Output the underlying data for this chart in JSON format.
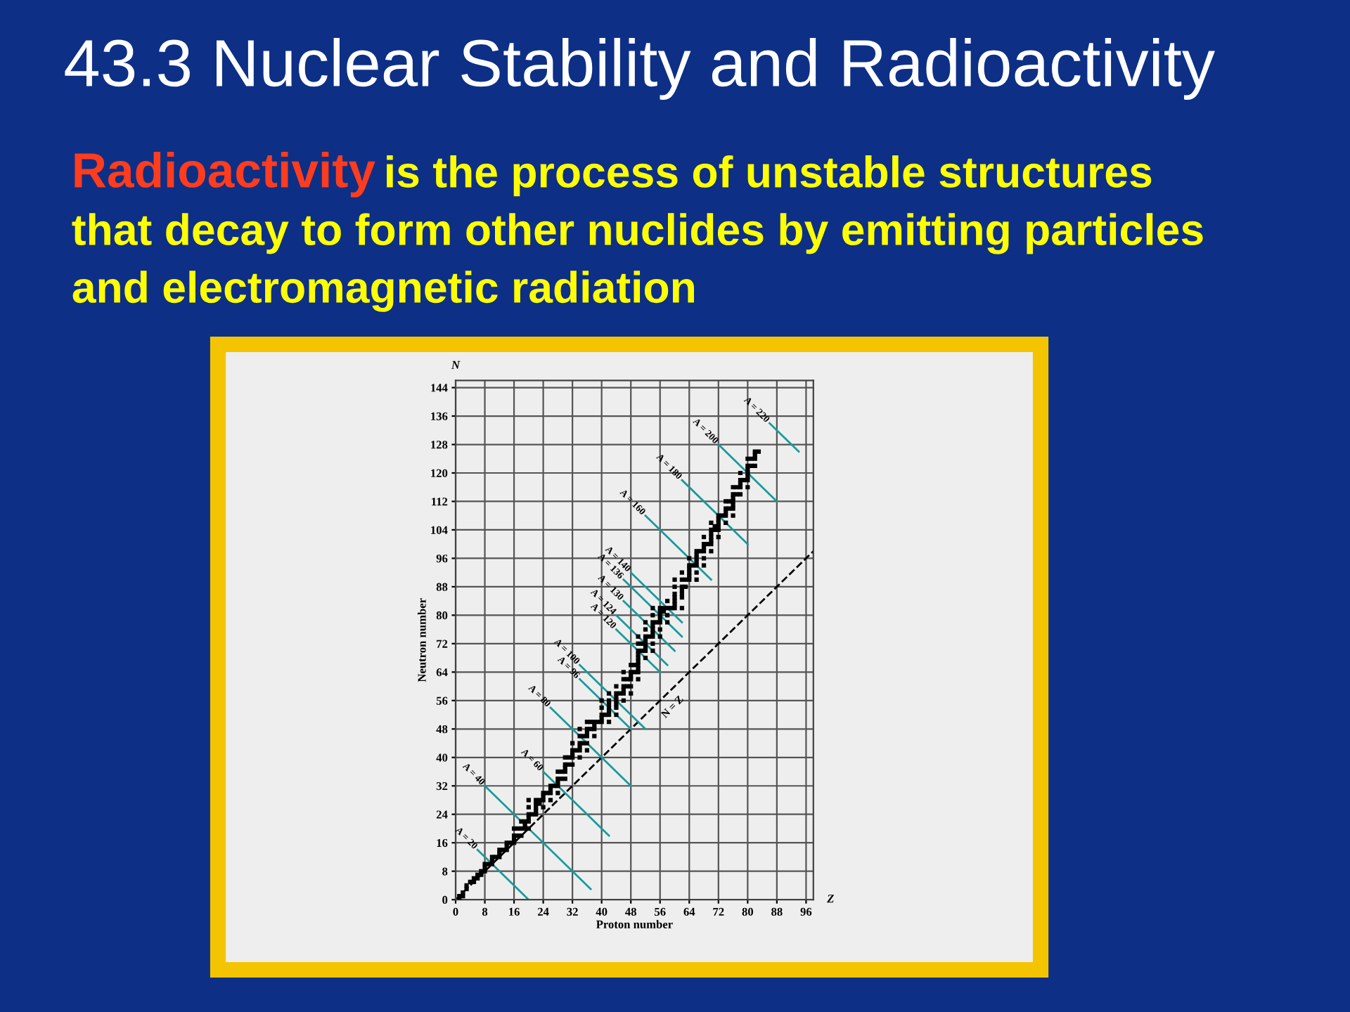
{
  "chart_data": {
    "type": "scatter",
    "title": "43.3 Nuclear Stability and Radioactivity",
    "subtitle": "Radioactivity is the process of unstable structures that decay to form other nuclides by emitting particles and electromagnetic radiation",
    "xlabel": "Proton number",
    "ylabel": "Neutron number",
    "annotations": [
      "N",
      "Z"
    ],
    "xlim": [
      0,
      98
    ],
    "ylim": [
      0,
      146
    ],
    "xticks": [
      0,
      8,
      16,
      24,
      32,
      40,
      48,
      56,
      64,
      72,
      80,
      88,
      96
    ],
    "yticks": [
      0,
      8,
      16,
      24,
      32,
      40,
      48,
      56,
      64,
      72,
      80,
      88,
      96,
      104,
      112,
      120,
      128,
      136,
      144
    ],
    "grid": true,
    "legend": false,
    "series": [
      {
        "marker": "square",
        "color": "#000000",
        "x": [
          1,
          1,
          2,
          2,
          3,
          3,
          4,
          5,
          5,
          6,
          6,
          7,
          7,
          8,
          8,
          8,
          9,
          10,
          10,
          10,
          11,
          12,
          12,
          12,
          13,
          14,
          14,
          14,
          15,
          16,
          16,
          16,
          16,
          17,
          17,
          18,
          18,
          18,
          19,
          19,
          19,
          20,
          20,
          20,
          20,
          20,
          20,
          21,
          22,
          22,
          22,
          22,
          22,
          23,
          23,
          24,
          24,
          24,
          24,
          25,
          26,
          26,
          26,
          26,
          27,
          28,
          28,
          28,
          28,
          28,
          29,
          29,
          30,
          30,
          30,
          30,
          30,
          31,
          31,
          32,
          32,
          32,
          32,
          32,
          33,
          34,
          34,
          34,
          34,
          34,
          34,
          35,
          35,
          36,
          36,
          36,
          36,
          36,
          36,
          37,
          37,
          38,
          38,
          38,
          38,
          39,
          40,
          40,
          40,
          40,
          40,
          41,
          42,
          42,
          42,
          42,
          42,
          42,
          42,
          44,
          44,
          44,
          44,
          44,
          44,
          44,
          45,
          46,
          46,
          46,
          46,
          46,
          46,
          47,
          47,
          48,
          48,
          48,
          48,
          48,
          48,
          49,
          49,
          50,
          50,
          50,
          50,
          50,
          50,
          50,
          50,
          50,
          50,
          51,
          51,
          52,
          52,
          52,
          52,
          52,
          52,
          52,
          52,
          53,
          54,
          54,
          54,
          54,
          54,
          54,
          54,
          54,
          54,
          55,
          56,
          56,
          56,
          56,
          56,
          56,
          56,
          57,
          57,
          58,
          58,
          58,
          58,
          59,
          60,
          60,
          60,
          60,
          60,
          60,
          60,
          62,
          62,
          62,
          62,
          62,
          62,
          62,
          63,
          63,
          64,
          64,
          64,
          64,
          64,
          64,
          65,
          66,
          66,
          66,
          66,
          66,
          66,
          66,
          67,
          68,
          68,
          68,
          68,
          68,
          68,
          69,
          70,
          70,
          70,
          70,
          70,
          70,
          70,
          71,
          71,
          72,
          72,
          72,
          72,
          72,
          72,
          73,
          74,
          74,
          74,
          74,
          74,
          75,
          75,
          76,
          76,
          76,
          76,
          76,
          76,
          76,
          77,
          77,
          78,
          78,
          78,
          78,
          78,
          79,
          80,
          80,
          80,
          80,
          80,
          80,
          80,
          81,
          81,
          82,
          82,
          82,
          82,
          83
        ],
        "values": [
          0,
          1,
          1,
          2,
          3,
          4,
          5,
          5,
          6,
          6,
          7,
          7,
          8,
          8,
          9,
          10,
          10,
          10,
          11,
          12,
          12,
          12,
          13,
          14,
          14,
          14,
          15,
          16,
          16,
          16,
          17,
          18,
          20,
          18,
          20,
          18,
          20,
          22,
          20,
          21,
          22,
          20,
          22,
          23,
          24,
          26,
          28,
          24,
          24,
          25,
          26,
          27,
          28,
          27,
          28,
          26,
          28,
          29,
          30,
          30,
          28,
          30,
          31,
          32,
          32,
          30,
          32,
          33,
          34,
          36,
          34,
          36,
          34,
          36,
          37,
          38,
          40,
          38,
          40,
          38,
          40,
          41,
          42,
          44,
          42,
          40,
          42,
          43,
          44,
          46,
          48,
          44,
          46,
          42,
          44,
          46,
          47,
          48,
          50,
          48,
          50,
          46,
          48,
          49,
          50,
          50,
          50,
          51,
          52,
          54,
          56,
          52,
          50,
          52,
          53,
          54,
          55,
          56,
          58,
          52,
          54,
          55,
          56,
          57,
          58,
          60,
          58,
          56,
          58,
          59,
          60,
          62,
          64,
          60,
          62,
          58,
          60,
          62,
          63,
          64,
          66,
          64,
          66,
          62,
          64,
          65,
          66,
          67,
          68,
          69,
          70,
          72,
          74,
          70,
          72,
          68,
          70,
          71,
          72,
          73,
          74,
          76,
          78,
          74,
          70,
          72,
          74,
          75,
          76,
          77,
          78,
          80,
          82,
          78,
          74,
          76,
          78,
          79,
          80,
          81,
          82,
          81,
          82,
          78,
          80,
          82,
          84,
          82,
          82,
          83,
          84,
          85,
          86,
          88,
          90,
          82,
          85,
          86,
          87,
          88,
          90,
          92,
          88,
          90,
          90,
          91,
          92,
          93,
          94,
          96,
          94,
          90,
          92,
          94,
          95,
          96,
          97,
          98,
          98,
          94,
          96,
          98,
          99,
          100,
          102,
          100,
          98,
          100,
          101,
          102,
          103,
          104,
          106,
          104,
          105,
          102,
          104,
          105,
          106,
          107,
          108,
          108,
          106,
          108,
          109,
          110,
          112,
          110,
          112,
          108,
          110,
          111,
          112,
          113,
          114,
          116,
          114,
          116,
          114,
          116,
          117,
          118,
          120,
          118,
          116,
          118,
          119,
          120,
          121,
          122,
          124,
          122,
          124,
          122,
          124,
          125,
          126,
          126
        ]
      },
      {
        "type": "line",
        "name": "N = Z",
        "color": "#000000",
        "line_style": "dashed",
        "x": [
          0,
          98
        ],
        "values": [
          0,
          98
        ]
      },
      {
        "type": "line",
        "name": "A = 20",
        "color": "#1a9a9a",
        "line_style": "solid",
        "x": [
          6,
          20
        ],
        "values": [
          14,
          0
        ]
      },
      {
        "type": "line",
        "name": "A = 40",
        "color": "#1a9a9a",
        "line_style": "solid",
        "x": [
          8,
          37
        ],
        "values": [
          32,
          3
        ]
      },
      {
        "type": "line",
        "name": "A = 60",
        "color": "#1a9a9a",
        "line_style": "solid",
        "x": [
          24,
          42
        ],
        "values": [
          36,
          18
        ]
      },
      {
        "type": "line",
        "name": "A = 80",
        "color": "#1a9a9a",
        "line_style": "solid",
        "x": [
          26,
          48
        ],
        "values": [
          54,
          32
        ]
      },
      {
        "type": "line",
        "name": "A = 96",
        "color": "#1a9a9a",
        "line_style": "solid",
        "x": [
          34,
          48
        ],
        "values": [
          62,
          48
        ]
      },
      {
        "type": "line",
        "name": "A = 100",
        "color": "#1a9a9a",
        "line_style": "solid",
        "x": [
          34,
          52
        ],
        "values": [
          66,
          48
        ]
      },
      {
        "type": "line",
        "name": "A = 120",
        "color": "#1a9a9a",
        "line_style": "solid",
        "x": [
          44,
          56
        ],
        "values": [
          76,
          64
        ]
      },
      {
        "type": "line",
        "name": "A = 124",
        "color": "#1a9a9a",
        "line_style": "solid",
        "x": [
          44,
          58
        ],
        "values": [
          80,
          66
        ]
      },
      {
        "type": "line",
        "name": "A = 130",
        "color": "#1a9a9a",
        "line_style": "solid",
        "x": [
          46,
          60
        ],
        "values": [
          84,
          70
        ]
      },
      {
        "type": "line",
        "name": "A = 136",
        "color": "#1a9a9a",
        "line_style": "solid",
        "x": [
          46,
          62
        ],
        "values": [
          90,
          74
        ]
      },
      {
        "type": "line",
        "name": "A = 140",
        "color": "#1a9a9a",
        "line_style": "solid",
        "x": [
          48,
          62
        ],
        "values": [
          92,
          78
        ]
      },
      {
        "type": "line",
        "name": "A = 160",
        "color": "#1a9a9a",
        "line_style": "solid",
        "x": [
          52,
          70
        ],
        "values": [
          108,
          90
        ]
      },
      {
        "type": "line",
        "name": "A = 180",
        "color": "#1a9a9a",
        "line_style": "solid",
        "x": [
          62,
          80
        ],
        "values": [
          118,
          100
        ]
      },
      {
        "type": "line",
        "name": "A = 200",
        "color": "#1a9a9a",
        "line_style": "solid",
        "x": [
          72,
          88
        ],
        "values": [
          128,
          112
        ]
      },
      {
        "type": "line",
        "name": "A = 220",
        "color": "#1a9a9a",
        "line_style": "solid",
        "x": [
          86,
          94
        ],
        "values": [
          134,
          126
        ]
      }
    ]
  }
}
